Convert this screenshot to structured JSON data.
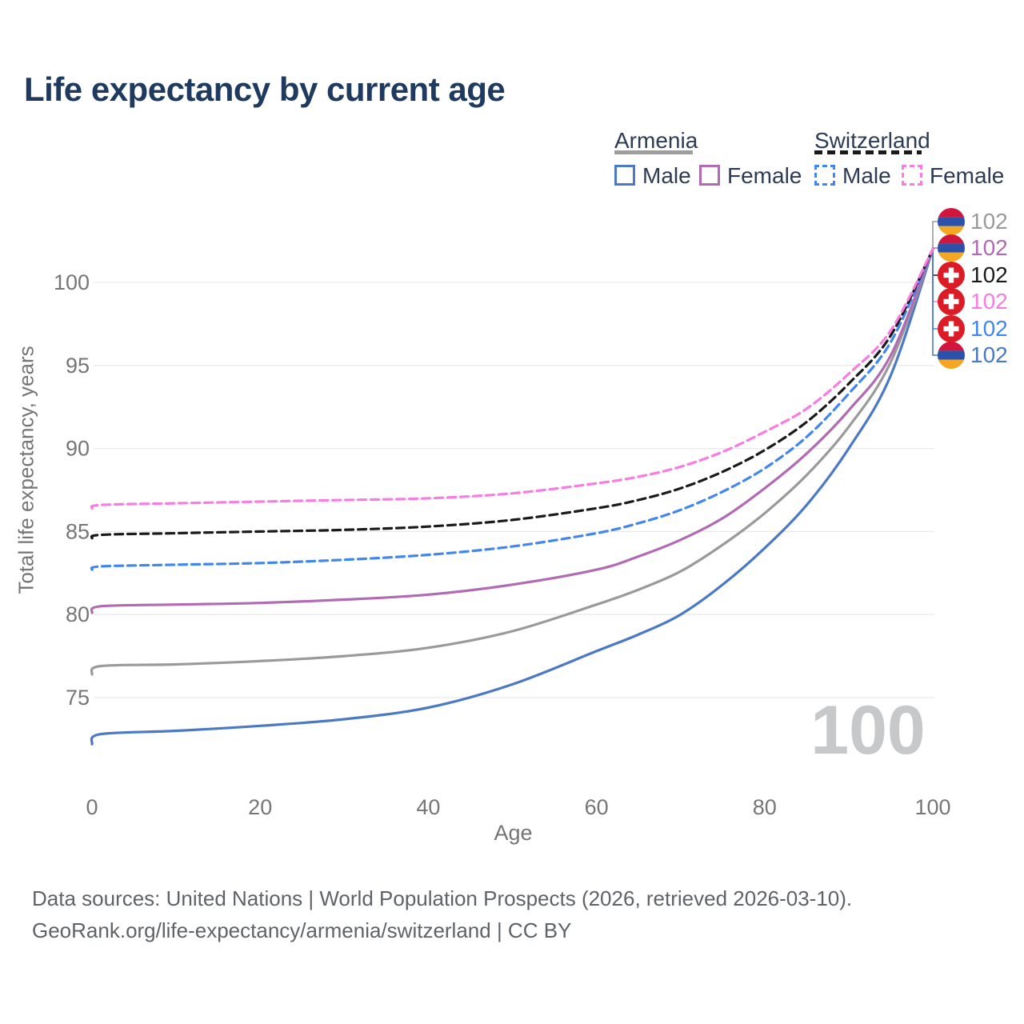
{
  "title": "Life expectancy by current age",
  "legend": {
    "armenia": {
      "label": "Armenia",
      "male": "Male",
      "female": "Female"
    },
    "switzerland": {
      "label": "Switzerland",
      "male": "Male",
      "female": "Female"
    }
  },
  "y_axis": {
    "title": "Total life expectancy, years",
    "ticks": [
      100,
      95,
      90,
      85,
      80,
      75
    ]
  },
  "x_axis": {
    "title": "Age",
    "ticks": [
      0,
      20,
      40,
      60,
      80,
      100
    ]
  },
  "watermark": "100",
  "end_labels": [
    {
      "flag": "armenia",
      "value": "102",
      "color": "#9a9a9a",
      "series": "armenia_all"
    },
    {
      "flag": "armenia",
      "value": "102",
      "color": "#b06bb3",
      "series": "armenia_female"
    },
    {
      "flag": "switzerland",
      "value": "102",
      "color": "#1a1a1a",
      "series": "switzerland_all"
    },
    {
      "flag": "switzerland",
      "value": "102",
      "color": "#f97ce0",
      "series": "switzerland_female"
    },
    {
      "flag": "switzerland",
      "value": "102",
      "color": "#4286f0",
      "series": "switzerland_male"
    },
    {
      "flag": "armenia",
      "value": "102",
      "color": "#4b79c4",
      "series": "armenia_male"
    }
  ],
  "footer": {
    "line1": "Data sources: United Nations | World Population Prospects (2026, retrieved 2026-03-10).",
    "line2": "GeoRank.org/life-expectancy/armenia/switzerland | CC BY"
  },
  "chart_data": {
    "type": "line",
    "title": "Life expectancy by current age",
    "xlabel": "Age",
    "ylabel": "Total life expectancy, years",
    "xlim": [
      0,
      100
    ],
    "ylim": [
      72,
      103
    ],
    "grid": "horizontal",
    "legend_position": "top-right",
    "ages": [
      0,
      1,
      10,
      20,
      30,
      40,
      50,
      60,
      65,
      70,
      75,
      80,
      85,
      90,
      95,
      100
    ],
    "series": [
      {
        "id": "armenia_male",
        "name": "Armenia Male",
        "color": "#4b79c4",
        "dash": false,
        "values": [
          72.2,
          72.8,
          73.0,
          73.3,
          73.7,
          74.4,
          75.8,
          77.8,
          78.8,
          80.0,
          81.8,
          84.0,
          86.6,
          90.0,
          94.4,
          102
        ]
      },
      {
        "id": "armenia_all",
        "name": "Armenia All",
        "color": "#9a9a9a",
        "dash": false,
        "values": [
          76.4,
          76.9,
          77.0,
          77.2,
          77.5,
          78.0,
          79.0,
          80.6,
          81.5,
          82.6,
          84.2,
          86.1,
          88.4,
          91.3,
          95.2,
          102
        ]
      },
      {
        "id": "armenia_female",
        "name": "Armenia Female",
        "color": "#b06bb3",
        "dash": false,
        "values": [
          80.1,
          80.5,
          80.6,
          80.7,
          80.9,
          81.2,
          81.8,
          82.7,
          83.5,
          84.5,
          85.8,
          87.6,
          89.7,
          92.3,
          95.6,
          102
        ]
      },
      {
        "id": "switzerland_male",
        "name": "Switzerland Male",
        "color": "#4286f0",
        "dash": true,
        "values": [
          82.7,
          82.9,
          83.0,
          83.1,
          83.3,
          83.6,
          84.1,
          84.9,
          85.5,
          86.3,
          87.4,
          88.8,
          90.7,
          93.3,
          96.4,
          102
        ]
      },
      {
        "id": "switzerland_all",
        "name": "Switzerland All",
        "color": "#1a1a1a",
        "dash": true,
        "values": [
          84.6,
          84.8,
          84.9,
          85.0,
          85.1,
          85.3,
          85.7,
          86.4,
          86.9,
          87.6,
          88.6,
          89.9,
          91.6,
          93.9,
          96.8,
          102
        ]
      },
      {
        "id": "switzerland_female",
        "name": "Switzerland Female",
        "color": "#f97ce0",
        "dash": true,
        "values": [
          86.4,
          86.6,
          86.7,
          86.8,
          86.9,
          87.0,
          87.3,
          87.9,
          88.3,
          88.9,
          89.8,
          91.0,
          92.4,
          94.5,
          97.1,
          102
        ]
      }
    ],
    "end_value": 102,
    "end_age": 100
  }
}
